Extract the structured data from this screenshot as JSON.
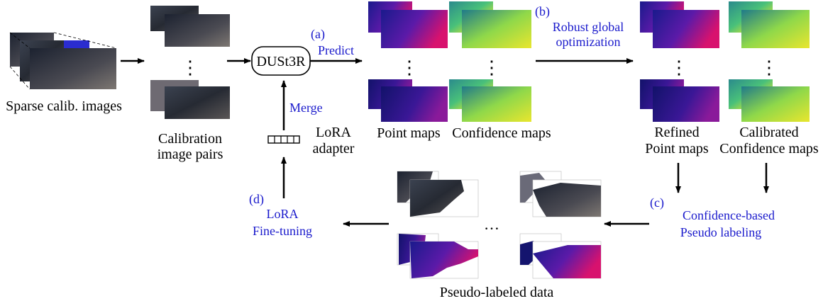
{
  "steps": {
    "a": "(a)",
    "a_label": "Predict",
    "b": "(b)",
    "b_line1": "Robust global",
    "b_line2": "optimization",
    "c": "(c)",
    "c_line1": "Confidence-based",
    "c_line2": "Pseudo labeling",
    "d": "(d)",
    "d_line1": "LoRA",
    "d_line2": "Fine-tuning",
    "merge": "Merge"
  },
  "labels": {
    "sparse": "Sparse calib. images",
    "calib_line1": "Calibration",
    "calib_line2": "image pairs",
    "model": "DUSt3R",
    "lora_line1": "LoRA",
    "lora_line2": "adapter",
    "point_maps": "Point maps",
    "confidence_maps": "Confidence maps",
    "refined_line1": "Refined",
    "refined_line2": "Point maps",
    "calibrated_line1": "Calibrated",
    "calibrated_line2": "Confidence maps",
    "pseudo": "Pseudo-labeled data",
    "vdots": "⋮",
    "hdots": "…"
  },
  "colors": {
    "step": "#1a1acc",
    "text": "#000000",
    "arrow": "#000000"
  }
}
